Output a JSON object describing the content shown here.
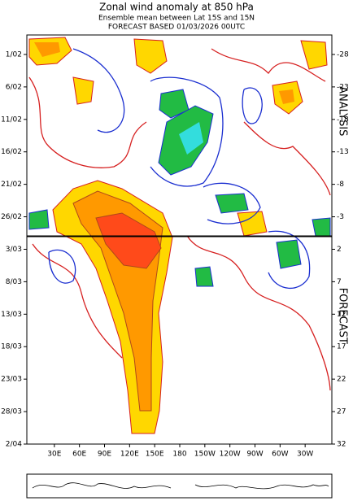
{
  "chart_data": {
    "type": "hovmoller",
    "title": "Zonal wind anomaly at 850 hPa",
    "subtitle": "Ensemble mean between  Lat 15S and 15N",
    "subtitle2": "FORECAST  BASED 01/03/2026 00UTC",
    "xlim": [
      0,
      360
    ],
    "xticks": [
      {
        "value": 30,
        "label": "30E"
      },
      {
        "value": 60,
        "label": "60E"
      },
      {
        "value": 90,
        "label": "90E"
      },
      {
        "value": 120,
        "label": "120E"
      },
      {
        "value": 150,
        "label": "150E"
      },
      180,
      {
        "value": 210,
        "label": "150W"
      },
      {
        "value": 240,
        "label": "120W"
      },
      {
        "value": 270,
        "label": "90W"
      },
      {
        "value": 300,
        "label": "60W"
      },
      {
        "value": 330,
        "label": "30W"
      }
    ],
    "ylim": [
      -31,
      32
    ],
    "yticks": [
      {
        "value": -28,
        "label": "1/02"
      },
      {
        "value": -23,
        "label": "6/02"
      },
      {
        "value": -18,
        "label": "11/02"
      },
      {
        "value": -13,
        "label": "16/02"
      },
      {
        "value": -8,
        "label": "21/02"
      },
      {
        "value": -3,
        "label": "26/02"
      },
      {
        "value": 2,
        "label": "3/03"
      },
      {
        "value": 7,
        "label": "8/03"
      },
      {
        "value": 12,
        "label": "13/03"
      },
      {
        "value": 17,
        "label": "18/03"
      },
      {
        "value": 22,
        "label": "23/03"
      },
      {
        "value": 27,
        "label": "28/03"
      },
      {
        "value": 32,
        "label": "2/04"
      }
    ],
    "y2lim": [
      -31,
      32
    ],
    "y2ticks": [
      -28,
      -23,
      -18,
      -13,
      -8,
      -3,
      2,
      7,
      12,
      17,
      22,
      27,
      32
    ],
    "forecast_base": 0,
    "annotations": [
      "ANALYSIS",
      "FORECAST"
    ]
  }
}
